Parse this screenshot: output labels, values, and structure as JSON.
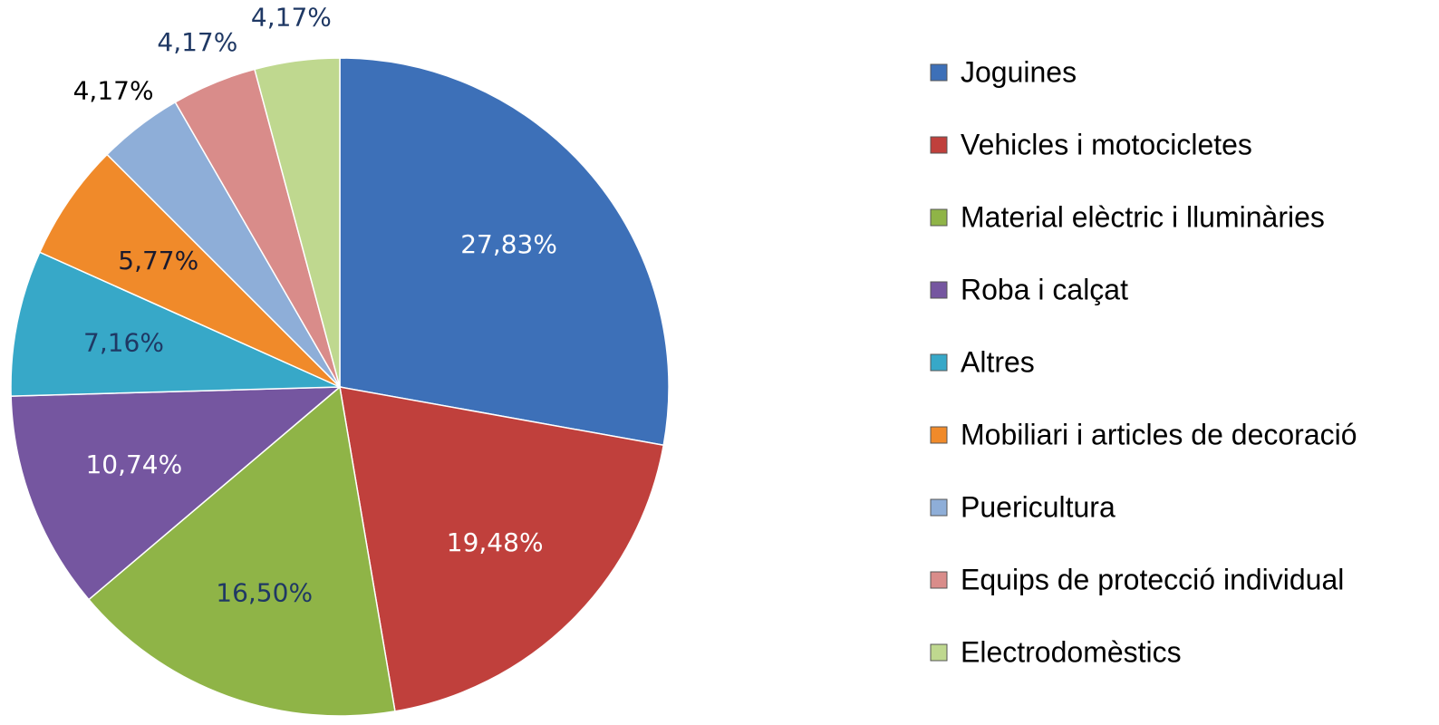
{
  "chart_data": {
    "type": "pie",
    "categories": [
      "Joguines",
      "Vehicles i motocicletes",
      "Material elèctric i lluminàries",
      "Roba i calçat",
      "Altres",
      "Mobiliari i articles de decoració",
      "Puericultura",
      "Equips de protecció individual",
      "Electrodomèstics"
    ],
    "values": [
      27.83,
      19.48,
      16.5,
      10.74,
      7.16,
      5.77,
      4.17,
      4.17,
      4.17
    ],
    "value_labels": [
      "27,83%",
      "19,48%",
      "16,50%",
      "10,74%",
      "7,16%",
      "5,77%",
      "4,17%",
      "4,17%",
      "4,17%"
    ],
    "colors": [
      "#3d70b8",
      "#c0403c",
      "#8fb447",
      "#7556a0",
      "#37a8c8",
      "#f08a2a",
      "#8eaed8",
      "#d98c8a",
      "#bfd88f"
    ],
    "label_colors": [
      "#ffffff",
      "#ffffff",
      "#1f3864",
      "#ffffff",
      "#1f3864",
      "#1a1a2e",
      "#000000",
      "#1f3864",
      "#1f3864"
    ],
    "legend": "right"
  }
}
